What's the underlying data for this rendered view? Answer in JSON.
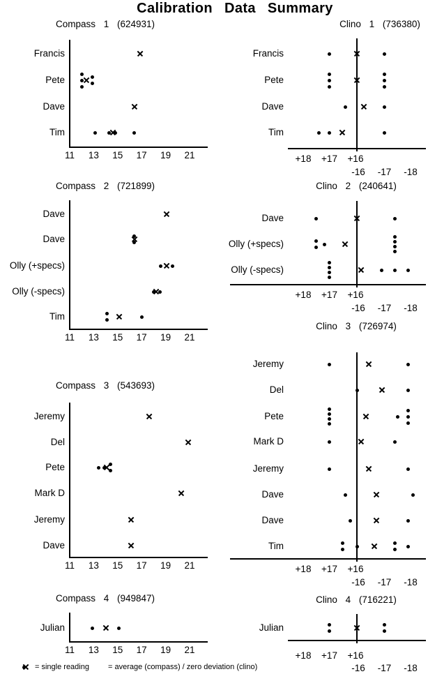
{
  "page_title": "Calibration  Data  Summary",
  "legend": {
    "dot_label": "= single reading",
    "x_label": "= average (compass) / zero deviation (clino)"
  },
  "chart_data": [
    {
      "id": "compass-1",
      "type": "scatter",
      "axis": "compass",
      "instrument": "Compass",
      "number": "1",
      "serial": "624931",
      "title": "Compass 1 (624931)",
      "x_ticks": [
        11,
        13,
        15,
        17,
        19,
        21
      ],
      "xlim": [
        11,
        21.5
      ],
      "rows": [
        {
          "name": "Francis",
          "readings": [],
          "average": 16.9
        },
        {
          "name": "Pete",
          "readings": [
            12.0,
            12.0,
            12.0,
            12.9,
            12.9
          ],
          "average": 12.4
        },
        {
          "name": "Dave",
          "readings": [],
          "average": 16.4
        },
        {
          "name": "Tim",
          "readings": [
            13.1,
            14.3,
            14.8,
            16.4
          ],
          "average": 14.6
        }
      ]
    },
    {
      "id": "clino-1",
      "type": "scatter",
      "axis": "clino",
      "instrument": "Clino",
      "number": "1",
      "serial": "736380",
      "title": "Clino 1 (736380)",
      "x_ticks_plus": [
        "+18",
        "+17",
        "+16"
      ],
      "x_ticks_minus": [
        "-16",
        "-17",
        "-18"
      ],
      "rows": [
        {
          "name": "Francis",
          "readings": [
            17.0,
            -17.0
          ],
          "zero_deviation": 0
        },
        {
          "name": "Pete",
          "readings": [
            17.0,
            17.0,
            17.0,
            -17.0,
            -17.0,
            -17.0
          ],
          "zero_deviation": 0
        },
        {
          "name": "Dave",
          "readings": [
            16.4,
            -17.0
          ],
          "zero_deviation": -16.2
        },
        {
          "name": "Tim",
          "readings": [
            17.4,
            17.0,
            -17.0
          ],
          "zero_deviation": 16.5
        }
      ]
    },
    {
      "id": "compass-2",
      "type": "scatter",
      "axis": "compass",
      "instrument": "Compass",
      "number": "2",
      "serial": "721899",
      "title": "Compass 2 (721899)",
      "x_ticks": [
        11,
        13,
        15,
        17,
        19,
        21
      ],
      "xlim": [
        11,
        21.5
      ],
      "rows": [
        {
          "name": "Dave",
          "readings": [],
          "average": 19.1
        },
        {
          "name": "Dave",
          "readings": [
            16.4,
            16.4
          ],
          "average": 16.4
        },
        {
          "name": "Olly (+specs)",
          "readings": [
            18.6,
            19.6
          ],
          "average": 19.1
        },
        {
          "name": "Olly (-specs)",
          "readings": [
            18.0,
            18.5
          ],
          "average": 18.2
        },
        {
          "name": "Tim",
          "readings": [
            14.1,
            14.1,
            17.0
          ],
          "average": 15.1
        }
      ]
    },
    {
      "id": "clino-2",
      "type": "scatter",
      "axis": "clino",
      "instrument": "Clino",
      "number": "2",
      "serial": "240641",
      "title": "Clino 2 (240641)",
      "x_ticks_plus": [
        "+18",
        "+17",
        "+16"
      ],
      "x_ticks_minus": [
        "-16",
        "-17",
        "-18"
      ],
      "rows": [
        {
          "name": "Dave",
          "readings": [
            17.5,
            -17.4
          ],
          "zero_deviation": 0
        },
        {
          "name": "Olly (+specs)",
          "readings": [
            17.5,
            17.5,
            17.2,
            -17.4,
            -17.4,
            -17.4,
            -17.4
          ],
          "zero_deviation": 16.4
        },
        {
          "name": "Olly (-specs)",
          "readings": [
            17.0,
            17.0,
            17.0,
            17.0,
            -16.9,
            -17.4,
            -17.9
          ],
          "zero_deviation": -16.1
        }
      ]
    },
    {
      "id": "compass-3",
      "type": "scatter",
      "axis": "compass",
      "instrument": "Compass",
      "number": "3",
      "serial": "543693",
      "title": "Compass 3 (543693)",
      "x_ticks": [
        11,
        13,
        15,
        17,
        19,
        21
      ],
      "xlim": [
        11,
        21.5
      ],
      "rows": [
        {
          "name": "Jeremy",
          "readings": [],
          "average": 17.6
        },
        {
          "name": "Del",
          "readings": [],
          "average": 20.9
        },
        {
          "name": "Pete",
          "readings": [
            13.4,
            13.9,
            14.4,
            14.4
          ],
          "average": 14.1
        },
        {
          "name": "Mark D",
          "readings": [],
          "average": 20.3
        },
        {
          "name": "Jeremy",
          "readings": [],
          "average": 16.1
        },
        {
          "name": "Dave",
          "readings": [],
          "average": 16.1
        }
      ]
    },
    {
      "id": "clino-3",
      "type": "scatter",
      "axis": "clino",
      "instrument": "Clino",
      "number": "3",
      "serial": "726974",
      "title": "Clino 3 (726974)",
      "x_ticks_plus": [
        "+18",
        "+17",
        "+16"
      ],
      "x_ticks_minus": [
        "-16",
        "-17",
        "-18"
      ],
      "rows": [
        {
          "name": "Jeremy",
          "readings": [
            17.0,
            -17.9
          ],
          "zero_deviation": -16.4
        },
        {
          "name": "Del",
          "readings": [
            0,
            -17.9
          ],
          "zero_deviation": -16.9
        },
        {
          "name": "Pete",
          "readings": [
            17.0,
            17.0,
            17.0,
            17.0,
            -17.5,
            -17.9,
            -17.9,
            -17.9
          ],
          "zero_deviation": -16.3
        },
        {
          "name": "Mark D",
          "readings": [
            17.0,
            -17.4
          ],
          "zero_deviation": -16.1
        },
        {
          "name": "Jeremy",
          "readings": [
            17.0,
            -17.9
          ],
          "zero_deviation": -16.4
        },
        {
          "name": "Dave",
          "readings": [
            16.4,
            -18.1
          ],
          "zero_deviation": -16.7
        },
        {
          "name": "Dave",
          "readings": [
            16.2,
            -17.9
          ],
          "zero_deviation": -16.7
        },
        {
          "name": "Tim",
          "readings": [
            16.5,
            16.5,
            0,
            -17.4,
            -17.4,
            -17.9
          ],
          "zero_deviation": -16.6
        }
      ]
    },
    {
      "id": "compass-4",
      "type": "scatter",
      "axis": "compass",
      "instrument": "Compass",
      "number": "4",
      "serial": "949847",
      "title": "Compass 4 (949847)",
      "x_ticks": [
        11,
        13,
        15,
        17,
        19,
        21
      ],
      "xlim": [
        11,
        21.5
      ],
      "rows": [
        {
          "name": "Julian",
          "readings": [
            12.9,
            15.1
          ],
          "average": 14.0
        }
      ]
    },
    {
      "id": "clino-4",
      "type": "scatter",
      "axis": "clino",
      "instrument": "Clino",
      "number": "4",
      "serial": "716221",
      "title": "Clino 4 (716221)",
      "x_ticks_plus": [
        "+18",
        "+17",
        "+16"
      ],
      "x_ticks_minus": [
        "-16",
        "-17",
        "-18"
      ],
      "rows": [
        {
          "name": "Julian",
          "readings": [
            17.0,
            17.0,
            -17.0,
            -17.0
          ],
          "zero_deviation": 0
        }
      ]
    }
  ]
}
